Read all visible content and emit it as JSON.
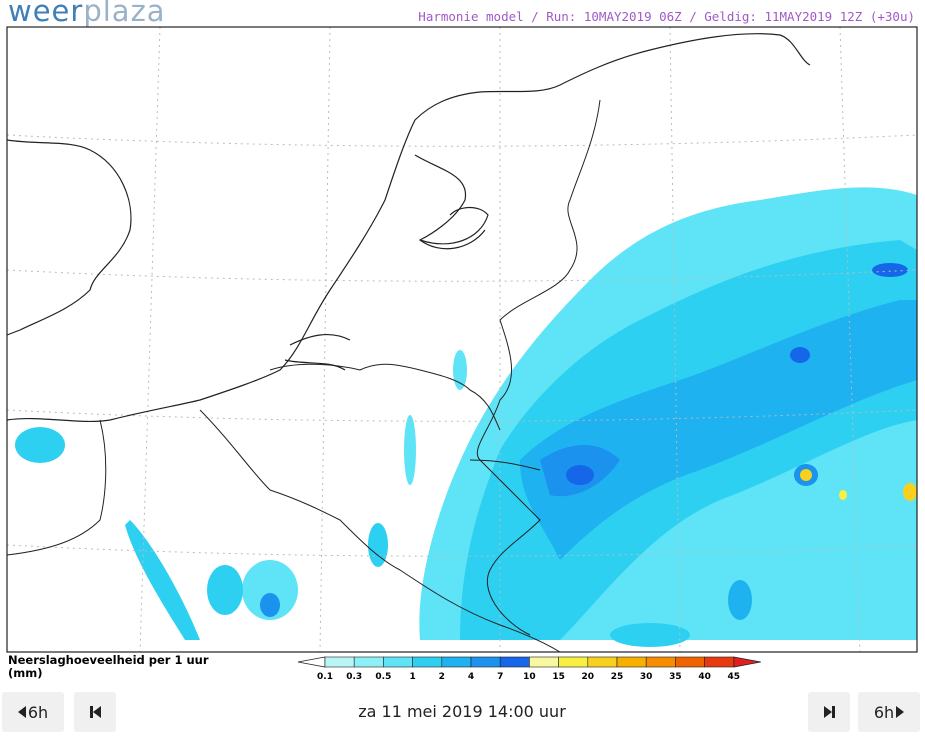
{
  "header": {
    "logo_primary": "weer",
    "logo_secondary": "plaza",
    "model_info": "Harmonie model / Run: 10MAY2019 06Z / Geldig: 11MAY2019 12Z (+30u)"
  },
  "legend": {
    "title": "Neerslaghoeveelheid per 1 uur",
    "unit": "(mm)",
    "levels": [
      0.1,
      0.3,
      0.5,
      1,
      2,
      4,
      7,
      10,
      15,
      20,
      25,
      30,
      35,
      40,
      45
    ],
    "colors": [
      "#b8f6f6",
      "#8cf0f6",
      "#5ee4f6",
      "#2ed0f2",
      "#1eb2f0",
      "#1a92ee",
      "#1666ea",
      "#f8f8a0",
      "#f8f040",
      "#f8d020",
      "#f8b000",
      "#f88c00",
      "#f06400",
      "#e83a10"
    ],
    "under_color": "#ffffff",
    "over_color": "#e02020"
  },
  "nav": {
    "back_step": "6h",
    "forward_step": "6h",
    "datetime": "za 11 mei 2019 14:00 uur"
  }
}
